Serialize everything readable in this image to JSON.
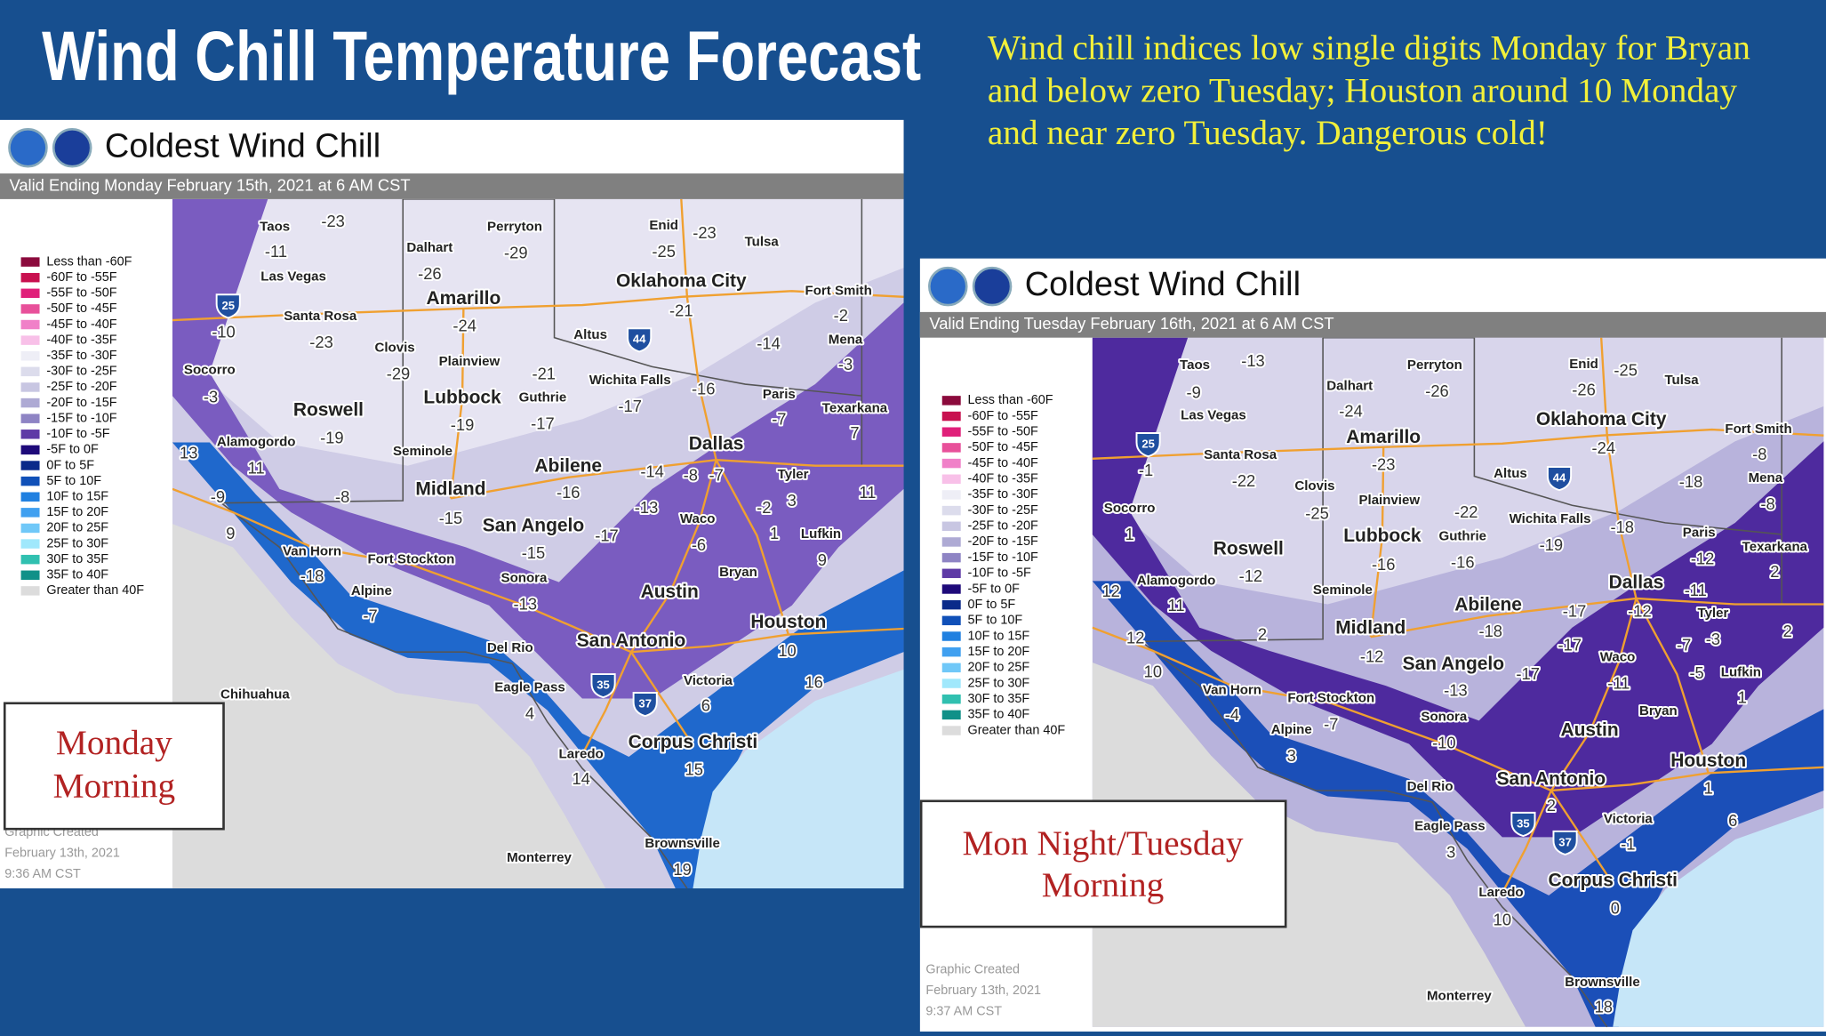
{
  "title": "Wind Chill  Temperature Forecast",
  "subtitle_lines": [
    "Wind chill indices low single digits Monday for Bryan",
    "and below zero Tuesday; Houston around 10 Monday",
    "and near zero Tuesday.  Dangerous cold!"
  ],
  "legend": [
    {
      "label": "Less than -60F",
      "color": "#8b0a3c"
    },
    {
      "label": "-60F to -55F",
      "color": "#c8104f"
    },
    {
      "label": "-55F to -50F",
      "color": "#e0207a"
    },
    {
      "label": "-50F to -45F",
      "color": "#e8509a"
    },
    {
      "label": "-45F to -40F",
      "color": "#f080c8"
    },
    {
      "label": "-40F to -35F",
      "color": "#f8c0e8"
    },
    {
      "label": "-35F to -30F",
      "color": "#eeeef6"
    },
    {
      "label": "-30F to -25F",
      "color": "#dcdcec"
    },
    {
      "label": "-25F to -20F",
      "color": "#c8c6e2"
    },
    {
      "label": "-20F to -15F",
      "color": "#aeaad4"
    },
    {
      "label": "-15F to -10F",
      "color": "#8e84c4"
    },
    {
      "label": "-10F to -5F",
      "color": "#5e3aa6"
    },
    {
      "label": "-5F to 0F",
      "color": "#1e0a7a"
    },
    {
      "label": "0F to 5F",
      "color": "#0a2a8a"
    },
    {
      "label": "5F to 10F",
      "color": "#1050b8"
    },
    {
      "label": "10F to 15F",
      "color": "#2080e0"
    },
    {
      "label": "15F to 20F",
      "color": "#40a0f0"
    },
    {
      "label": "20F to 25F",
      "color": "#70c8f8"
    },
    {
      "label": "25F to 30F",
      "color": "#a0e8fc"
    },
    {
      "label": "30F to 35F",
      "color": "#30c0b0"
    },
    {
      "label": "35F to 40F",
      "color": "#109088"
    },
    {
      "label": "Greater than 40F",
      "color": "#dcdcdc"
    }
  ],
  "panels": [
    {
      "header": "Coldest Wind Chill",
      "valid": "Valid Ending Monday February 15th, 2021 at 6 AM CST",
      "period_label_lines": [
        "Monday",
        "Morning"
      ],
      "created_lines": [
        "Graphic Created",
        "February 13th, 2021",
        "9:36 AM CST"
      ],
      "cities": [
        "Taos",
        "Perryton",
        "Enid",
        "Tulsa",
        "Dalhart",
        "Las Vegas",
        "Oklahoma City",
        "Fort Smith",
        "Amarillo",
        "Santa Rosa",
        "Altus",
        "Clovis",
        "Plainview",
        "Mena",
        "Socorro",
        "Wichita Falls",
        "Lubbock",
        "Guthrie",
        "Paris",
        "Roswell",
        "Texarkana",
        "Alamogordo",
        "Dallas",
        "Seminole",
        "Abilene",
        "Tyler",
        "Midland",
        "San Angelo",
        "Waco",
        "Lufkin",
        "Van Horn",
        "Fort Stockton",
        "Sonora",
        "Bryan",
        "Alpine",
        "Austin",
        "Houston",
        "San Antonio",
        "Del Rio",
        "Victoria",
        "Chihuahua",
        "Eagle Pass",
        "Corpus Christi",
        "Laredo",
        "Brownsville",
        "Monterrey"
      ],
      "highways": [
        25,
        44,
        35,
        37
      ],
      "values": [
        -23,
        -11,
        -29,
        -25,
        -23,
        -26,
        -24,
        -21,
        -2,
        -10,
        -23,
        -14,
        -29,
        -21,
        -3,
        -3,
        -17,
        -16,
        -19,
        -17,
        -7,
        -19,
        7,
        11,
        13,
        -14,
        -8,
        -7,
        -16,
        -8,
        3,
        -9,
        11,
        -2,
        -15,
        -13,
        -17,
        1,
        -6,
        9,
        -15,
        9,
        -18,
        -13,
        -7,
        10,
        16,
        6,
        4,
        15,
        14,
        19
      ]
    },
    {
      "header": "Coldest Wind Chill",
      "valid": "Valid Ending Tuesday February 16th, 2021 at 6 AM CST",
      "period_label_lines": [
        "Mon Night/Tuesday",
        "Morning"
      ],
      "created_lines": [
        "Graphic Created",
        "February 13th, 2021",
        "9:37 AM CST"
      ],
      "cities": [
        "Taos",
        "Perryton",
        "Enid",
        "Tulsa",
        "Dalhart",
        "Las Vegas",
        "Oklahoma City",
        "Fort Smith",
        "Amarillo",
        "Santa Rosa",
        "Altus",
        "Clovis",
        "Plainview",
        "Mena",
        "Socorro",
        "Wichita Falls",
        "Lubbock",
        "Guthrie",
        "Paris",
        "Roswell",
        "Texarkana",
        "Alamogordo",
        "Dallas",
        "Seminole",
        "Abilene",
        "Tyler",
        "Midland",
        "San Angelo",
        "Waco",
        "Lufkin",
        "Van Horn",
        "Fort Stockton",
        "Sonora",
        "Bryan",
        "Alpine",
        "Austin",
        "Houston",
        "San Antonio",
        "Del Rio",
        "Victoria",
        "Eagle Pass",
        "Corpus Christi",
        "Laredo",
        "Brownsville",
        "Monterrey"
      ],
      "highways": [
        25,
        44,
        35,
        37
      ],
      "values": [
        -13,
        -9,
        -26,
        -26,
        -25,
        -24,
        -23,
        -24,
        -8,
        -1,
        -22,
        -18,
        -8,
        -25,
        -22,
        1,
        -19,
        -18,
        -16,
        -16,
        -12,
        -12,
        2,
        11,
        12,
        -11,
        -17,
        -12,
        -18,
        -3,
        -7,
        2,
        2,
        12,
        -17,
        -12,
        -5,
        -17,
        -11,
        1,
        10,
        -13,
        -4,
        -7,
        -10,
        3,
        1,
        2,
        6,
        -1,
        3,
        0,
        10,
        18
      ]
    }
  ]
}
